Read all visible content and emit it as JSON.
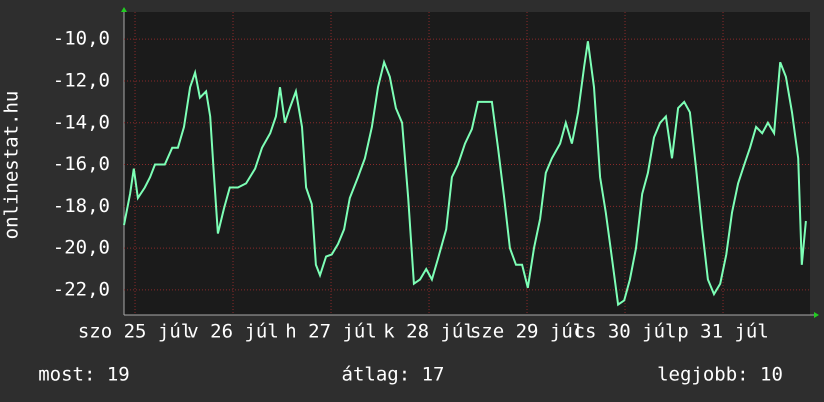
{
  "chart_data": {
    "type": "line",
    "ylabel": "onlinestat.hu",
    "xlim": [
      0,
      168
    ],
    "xticks": [
      {
        "value": 2.7,
        "label": "szo 25 júl"
      },
      {
        "value": 26.7,
        "label": "v 26 júl"
      },
      {
        "value": 50.7,
        "label": "h 27 júl"
      },
      {
        "value": 74.7,
        "label": "k 28 júl"
      },
      {
        "value": 98.7,
        "label": "sze 29 júl"
      },
      {
        "value": 122.7,
        "label": "cs 30 júl"
      },
      {
        "value": 146.7,
        "label": "p 31 júl"
      }
    ],
    "ylim": [
      -23.2,
      -8.7
    ],
    "yticks": [
      {
        "value": -22,
        "label": "-22,0"
      },
      {
        "value": -20,
        "label": "-20,0"
      },
      {
        "value": -18,
        "label": "-18,0"
      },
      {
        "value": -16,
        "label": "-16,0"
      },
      {
        "value": -14,
        "label": "-14,0"
      },
      {
        "value": -12,
        "label": "-12,0"
      },
      {
        "value": -10,
        "label": "-10,0"
      }
    ],
    "grid": true,
    "series": [
      {
        "color": "#7dffb6",
        "x": [
          0,
          1.5,
          2.4,
          3.4,
          5.1,
          6.4,
          7.6,
          10,
          11.8,
          13.2,
          14.7,
          16.2,
          17.4,
          18.6,
          20.1,
          21.1,
          22,
          23,
          24.5,
          25.9,
          27.9,
          29.9,
          32.1,
          33.8,
          35.8,
          37.2,
          38.2,
          39.4,
          40.6,
          42.1,
          43.6,
          44.6,
          46,
          47,
          48,
          49.5,
          50.9,
          52.4,
          53.9,
          55.3,
          57.3,
          59,
          60.7,
          62.2,
          63.7,
          65.1,
          66.6,
          68.1,
          69.6,
          71,
          72.5,
          74,
          75.4,
          76.9,
          78.9,
          80.3,
          81.8,
          83.5,
          85.2,
          86.7,
          88.7,
          90.1,
          91.6,
          93.1,
          94.5,
          96,
          97.5,
          98.9,
          100.4,
          101.9,
          103.3,
          104.8,
          106.8,
          108.2,
          109.7,
          111.2,
          112.7,
          113.6,
          115.1,
          116.6,
          118,
          119.5,
          121,
          122.5,
          123.9,
          125.4,
          126.9,
          128.3,
          129.8,
          131.3,
          132.7,
          134.2,
          135.7,
          137.2,
          138.6,
          140.1,
          141.6,
          143,
          144.5,
          146,
          147.5,
          148.9,
          150.4,
          151.9,
          153.3,
          154.8,
          156.3,
          157.7,
          159.2,
          160.7,
          162.1,
          163.6,
          165.1,
          166,
          167
        ],
        "values": [
          -18.9,
          -17.4,
          -16.2,
          -17.6,
          -17.1,
          -16.6,
          -16.0,
          -16.0,
          -15.2,
          -15.2,
          -14.2,
          -12.3,
          -11.6,
          -12.8,
          -12.5,
          -13.7,
          -16.4,
          -19.3,
          -18.1,
          -17.1,
          -17.1,
          -16.9,
          -16.2,
          -15.2,
          -14.5,
          -13.7,
          -12.3,
          -14.0,
          -13.3,
          -12.5,
          -14.2,
          -17.1,
          -17.9,
          -20.8,
          -21.3,
          -20.4,
          -20.3,
          -19.8,
          -19.1,
          -17.6,
          -16.6,
          -15.7,
          -14.2,
          -12.3,
          -11.1,
          -11.8,
          -13.3,
          -14.0,
          -17.6,
          -21.7,
          -21.5,
          -21.0,
          -21.5,
          -20.5,
          -19.1,
          -16.6,
          -16.0,
          -15.0,
          -14.3,
          -13.0,
          -13.0,
          -13.0,
          -15.2,
          -17.6,
          -20.0,
          -20.8,
          -20.8,
          -21.9,
          -20.0,
          -18.6,
          -16.4,
          -15.7,
          -15.0,
          -14.0,
          -15.0,
          -13.5,
          -11.3,
          -10.1,
          -12.3,
          -16.6,
          -18.3,
          -20.5,
          -22.7,
          -22.5,
          -21.5,
          -20.0,
          -17.4,
          -16.4,
          -14.7,
          -14.0,
          -13.7,
          -15.7,
          -13.3,
          -13.0,
          -13.5,
          -16.2,
          -19.1,
          -21.5,
          -22.2,
          -21.7,
          -20.3,
          -18.3,
          -16.9,
          -16.0,
          -15.2,
          -14.2,
          -14.5,
          -14.0,
          -14.5,
          -11.1,
          -11.8,
          -13.5,
          -15.7,
          -20.8,
          -18.7
        ]
      }
    ],
    "footer": [
      "most: 19",
      "átlag: 17",
      "legjobb: 10"
    ]
  }
}
